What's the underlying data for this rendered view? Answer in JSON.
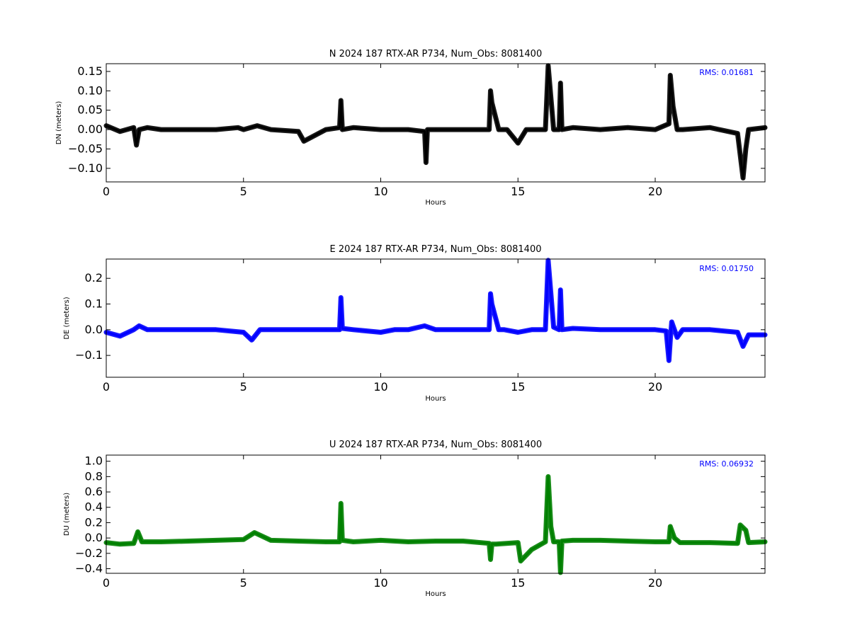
{
  "chart_data": [
    {
      "type": "line",
      "title": "N 2024 187 RTX-AR  P734, Num_Obs: 8081400",
      "xlabel": "Hours",
      "ylabel": "DN (meters)",
      "xlim": [
        0,
        24
      ],
      "ylim": [
        -0.135,
        0.17
      ],
      "xticks": [
        0,
        5,
        10,
        15,
        20
      ],
      "yticks": [
        -0.1,
        -0.05,
        0.0,
        0.05,
        0.1,
        0.15
      ],
      "ytick_labels": [
        "−0.10",
        "−0.05",
        "0.00",
        "0.05",
        "0.10",
        "0.15"
      ],
      "annotation": "RMS:  0.01681",
      "color": "#000000",
      "series": [
        {
          "x": [
            0,
            0.5,
            1.0,
            1.1,
            1.2,
            1.5,
            2.0,
            3.0,
            4.0,
            4.8,
            5.0,
            5.5,
            6.0,
            7.0,
            7.2,
            8.0,
            8.5,
            8.55,
            8.6,
            9.0,
            10.0,
            11.0,
            11.6,
            11.65,
            11.7,
            12.0,
            13.0,
            13.95,
            14.0,
            14.05,
            14.3,
            14.6,
            15.0,
            15.3,
            16.0,
            16.1,
            16.3,
            16.5,
            16.55,
            16.6,
            17.0,
            18.0,
            19.0,
            20.0,
            20.5,
            20.55,
            20.65,
            20.8,
            21.0,
            22.0,
            23.0,
            23.2,
            23.3,
            23.4,
            24.0
          ],
          "y": [
            0.01,
            -0.005,
            0.005,
            -0.04,
            0.0,
            0.005,
            0.0,
            0.0,
            0.0,
            0.005,
            0.0,
            0.01,
            0.0,
            -0.005,
            -0.03,
            0.0,
            0.005,
            0.075,
            0.0,
            0.005,
            0.0,
            0.0,
            -0.005,
            -0.085,
            0.0,
            0.0,
            0.0,
            0.0,
            0.1,
            0.07,
            0.0,
            0.0,
            -0.035,
            0.0,
            0.0,
            0.165,
            0.0,
            0.0,
            0.12,
            0.0,
            0.005,
            0.0,
            0.005,
            0.0,
            0.015,
            0.14,
            0.06,
            0.0,
            0.0,
            0.005,
            -0.01,
            -0.125,
            -0.05,
            0.0,
            0.005
          ]
        }
      ]
    },
    {
      "type": "line",
      "title": "E 2024 187 RTX-AR  P734, Num_Obs: 8081400",
      "xlabel": "Hours",
      "ylabel": "DE (meters)",
      "xlim": [
        0,
        24
      ],
      "ylim": [
        -0.185,
        0.275
      ],
      "xticks": [
        0,
        5,
        10,
        15,
        20
      ],
      "yticks": [
        -0.1,
        0.0,
        0.1,
        0.2
      ],
      "ytick_labels": [
        "−0.1",
        "0.0",
        "0.1",
        "0.2"
      ],
      "annotation": "RMS:  0.01750",
      "color": "#0000ff",
      "series": [
        {
          "x": [
            0,
            0.5,
            1.0,
            1.2,
            1.5,
            2.0,
            3.0,
            4.0,
            5.0,
            5.3,
            5.6,
            6.0,
            7.0,
            8.0,
            8.5,
            8.55,
            8.6,
            9.0,
            10.0,
            10.5,
            11.0,
            11.6,
            12.0,
            13.0,
            13.95,
            14.0,
            14.05,
            14.3,
            14.5,
            15.0,
            15.5,
            16.0,
            16.1,
            16.3,
            16.5,
            16.55,
            16.6,
            17.0,
            18.0,
            19.0,
            20.0,
            20.4,
            20.5,
            20.55,
            20.6,
            20.8,
            21.0,
            22.0,
            23.0,
            23.2,
            23.4,
            24.0
          ],
          "y": [
            -0.01,
            -0.025,
            0.0,
            0.015,
            0.0,
            0.0,
            0.0,
            0.0,
            -0.01,
            -0.04,
            0.0,
            0.0,
            0.0,
            0.0,
            0.0,
            0.125,
            0.005,
            0.0,
            -0.01,
            0.0,
            0.0,
            0.015,
            0.0,
            0.0,
            0.0,
            0.14,
            0.1,
            0.0,
            0.0,
            -0.01,
            0.0,
            0.0,
            0.27,
            0.01,
            0.0,
            0.155,
            0.0,
            0.005,
            0.0,
            0.0,
            0.0,
            -0.005,
            -0.12,
            -0.04,
            0.03,
            -0.03,
            0.0,
            0.0,
            -0.01,
            -0.065,
            -0.02,
            -0.02
          ]
        }
      ]
    },
    {
      "type": "line",
      "title": "U 2024 187 RTX-AR  P734, Num_Obs: 8081400",
      "xlabel": "Hours",
      "ylabel": "DU (meters)",
      "xlim": [
        0,
        24
      ],
      "ylim": [
        -0.46,
        1.08
      ],
      "xticks": [
        0,
        5,
        10,
        15,
        20
      ],
      "yticks": [
        -0.4,
        -0.2,
        0.0,
        0.2,
        0.4,
        0.6,
        0.8,
        1.0
      ],
      "ytick_labels": [
        "−0.4",
        "−0.2",
        "0.0",
        "0.2",
        "0.4",
        "0.6",
        "0.8",
        "1.0"
      ],
      "annotation": "RMS:  0.06932",
      "color": "#008000",
      "series": [
        {
          "x": [
            0,
            0.5,
            1.0,
            1.15,
            1.3,
            1.5,
            2.0,
            3.0,
            4.0,
            5.0,
            5.4,
            6.0,
            7.0,
            8.0,
            8.5,
            8.55,
            8.6,
            9.0,
            10.0,
            11.0,
            12.0,
            13.0,
            13.95,
            14.0,
            14.05,
            14.2,
            15.0,
            15.1,
            15.5,
            16.0,
            16.1,
            16.2,
            16.3,
            16.5,
            16.55,
            16.6,
            17.0,
            18.0,
            19.0,
            20.0,
            20.5,
            20.55,
            20.7,
            20.9,
            21.0,
            22.0,
            23.0,
            23.1,
            23.3,
            23.4,
            24.0
          ],
          "y": [
            -0.06,
            -0.08,
            -0.07,
            0.08,
            -0.05,
            -0.05,
            -0.05,
            -0.04,
            -0.03,
            -0.02,
            0.07,
            -0.03,
            -0.04,
            -0.05,
            -0.05,
            0.45,
            -0.03,
            -0.05,
            -0.03,
            -0.05,
            -0.04,
            -0.04,
            -0.07,
            -0.28,
            -0.08,
            -0.08,
            -0.06,
            -0.3,
            -0.15,
            -0.05,
            0.8,
            0.15,
            -0.05,
            -0.05,
            -0.45,
            -0.04,
            -0.03,
            -0.03,
            -0.04,
            -0.05,
            -0.05,
            0.15,
            0.0,
            -0.06,
            -0.06,
            -0.06,
            -0.07,
            0.17,
            0.1,
            -0.06,
            -0.05
          ]
        }
      ]
    }
  ]
}
